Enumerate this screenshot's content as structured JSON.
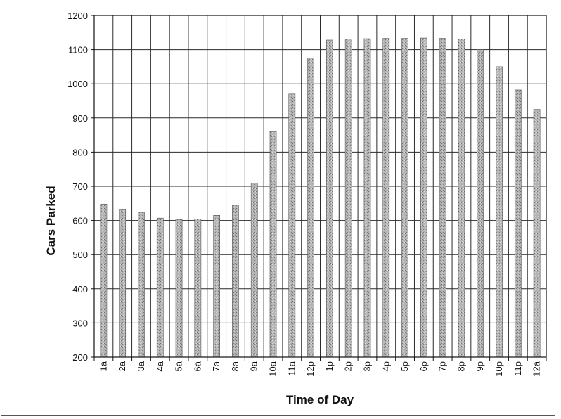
{
  "chart_data": {
    "type": "bar",
    "title": "",
    "xlabel": "Time of Day",
    "ylabel": "Cars Parked",
    "ylim": [
      200,
      1200
    ],
    "yticks": [
      200,
      300,
      400,
      500,
      600,
      700,
      800,
      900,
      1000,
      1100,
      1200
    ],
    "grid": true,
    "legend": "none",
    "bar_color": "#a6a6a6",
    "categories": [
      "1a",
      "2a",
      "3a",
      "4a",
      "5a",
      "6a",
      "7a",
      "8a",
      "9a",
      "10a",
      "11a",
      "12p",
      "1p",
      "2p",
      "3p",
      "4p",
      "5p",
      "6p",
      "7p",
      "8p",
      "9p",
      "10p",
      "11p",
      "12a"
    ],
    "values": [
      648,
      632,
      624,
      607,
      603,
      604,
      615,
      645,
      709,
      860,
      972,
      1075,
      1128,
      1131,
      1132,
      1133,
      1133,
      1134,
      1133,
      1131,
      1100,
      1050,
      982,
      925
    ]
  }
}
